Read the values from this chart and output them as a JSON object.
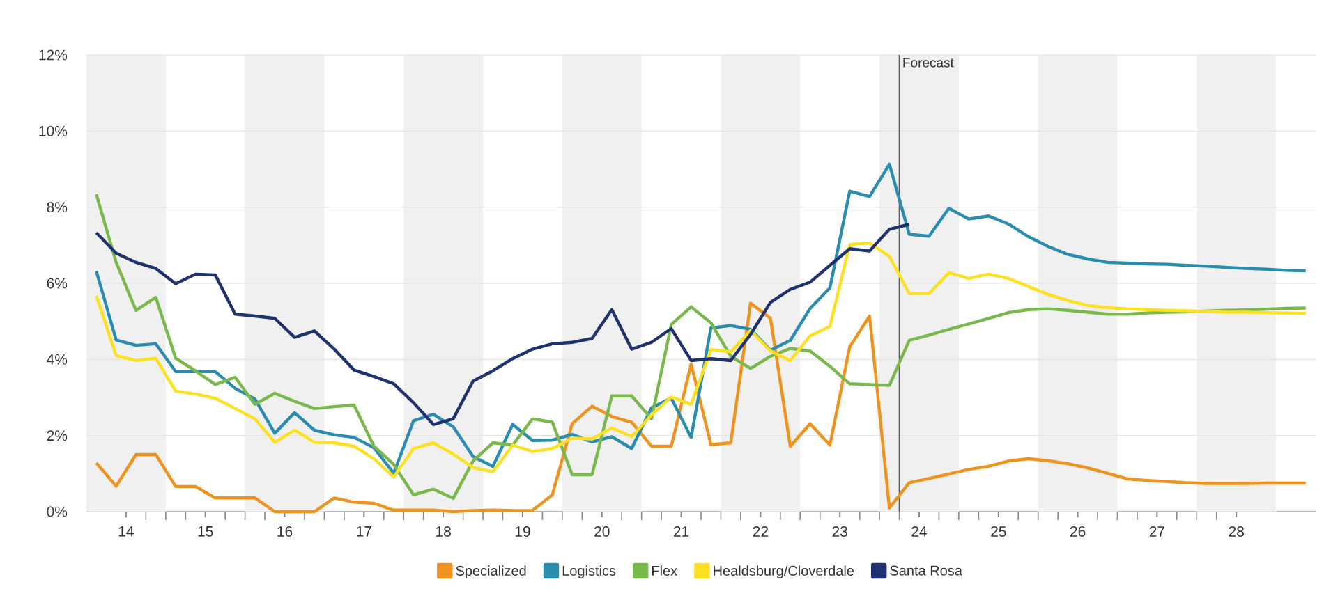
{
  "chart_data": {
    "type": "line",
    "x": [
      14.125,
      14.375,
      14.625,
      14.875,
      15.125,
      15.375,
      15.625,
      15.875,
      16.125,
      16.375,
      16.625,
      16.875,
      17.125,
      17.375,
      17.625,
      17.875,
      18.125,
      18.375,
      18.625,
      18.875,
      19.125,
      19.375,
      19.625,
      19.875,
      20.125,
      20.375,
      20.625,
      20.875,
      21.125,
      21.375,
      21.625,
      21.875,
      22.125,
      22.375,
      22.625,
      22.875,
      23.125,
      23.375,
      23.625,
      23.875,
      24.125,
      24.375,
      24.625,
      24.875,
      25.125,
      25.375,
      25.625,
      25.875,
      26.125,
      26.375,
      26.625,
      26.875,
      27.125,
      27.375,
      27.625,
      27.875,
      28.125,
      28.375,
      28.625,
      28.875,
      29.125,
      29.375
    ],
    "series": [
      {
        "name": "Specialized",
        "color": "#f0931e",
        "values": [
          1.28,
          0.67,
          1.5,
          1.5,
          0.66,
          0.66,
          0.36,
          0.36,
          0.36,
          0,
          0,
          0,
          0.36,
          0.25,
          0.22,
          0.04,
          0.04,
          0.04,
          0,
          0.03,
          0.04,
          0.03,
          0.03,
          0.44,
          2.31,
          2.77,
          2.5,
          2.35,
          1.72,
          1.72,
          3.88,
          1.76,
          1.81,
          5.48,
          5.08,
          1.72,
          2.31,
          1.75,
          4.33,
          5.14,
          0.1,
          0.76,
          0.87,
          0.99,
          1.11,
          1.19,
          1.33,
          1.39,
          1.34,
          1.26,
          1.15,
          1.01,
          0.86,
          0.82,
          0.79,
          0.76,
          0.74,
          0.74,
          0.74,
          0.75,
          0.75,
          0.75
        ]
      },
      {
        "name": "Logistics",
        "color": "#2a8cae",
        "values": [
          6.32,
          4.51,
          4.37,
          4.41,
          3.68,
          3.68,
          3.68,
          3.24,
          2.96,
          2.06,
          2.6,
          2.14,
          2.02,
          1.95,
          1.68,
          1.01,
          2.39,
          2.56,
          2.23,
          1.45,
          1.19,
          2.29,
          1.87,
          1.88,
          2.03,
          1.83,
          1.97,
          1.66,
          2.73,
          2.98,
          1.95,
          4.83,
          4.89,
          4.79,
          4.24,
          4.5,
          5.34,
          5.88,
          8.42,
          8.28,
          9.13,
          7.29,
          7.24,
          7.97,
          7.69,
          7.77,
          7.56,
          7.23,
          6.97,
          6.76,
          6.64,
          6.55,
          6.53,
          6.51,
          6.5,
          6.47,
          6.45,
          6.42,
          6.39,
          6.37,
          6.34,
          6.33
        ]
      },
      {
        "name": "Flex",
        "color": "#79b84a",
        "values": [
          8.34,
          6.55,
          5.29,
          5.63,
          4.03,
          3.7,
          3.34,
          3.53,
          2.82,
          3.11,
          2.9,
          2.71,
          2.76,
          2.8,
          1.72,
          1.24,
          0.44,
          0.59,
          0.35,
          1.33,
          1.81,
          1.75,
          2.44,
          2.35,
          0.97,
          0.97,
          3.04,
          3.04,
          2.44,
          4.92,
          5.38,
          4.96,
          4.08,
          3.76,
          4.08,
          4.29,
          4.22,
          3.82,
          3.36,
          3.34,
          3.32,
          4.5,
          4.64,
          4.79,
          4.93,
          5.08,
          5.23,
          5.31,
          5.33,
          5.29,
          5.24,
          5.19,
          5.19,
          5.22,
          5.24,
          5.25,
          5.27,
          5.29,
          5.3,
          5.32,
          5.34,
          5.35
        ]
      },
      {
        "name": "Healdsburg/Cloverdale",
        "color": "#fde022",
        "values": [
          5.67,
          4.1,
          3.97,
          4.03,
          3.17,
          3.09,
          2.98,
          2.71,
          2.44,
          1.82,
          2.14,
          1.82,
          1.81,
          1.72,
          1.39,
          0.91,
          1.66,
          1.81,
          1.51,
          1.16,
          1.05,
          1.75,
          1.58,
          1.66,
          1.93,
          1.91,
          2.2,
          1.97,
          2.54,
          3.01,
          2.82,
          4.26,
          4.2,
          4.76,
          4.22,
          3.97,
          4.62,
          4.87,
          7.02,
          7.06,
          6.71,
          5.73,
          5.73,
          6.28,
          6.13,
          6.24,
          6.13,
          5.92,
          5.71,
          5.55,
          5.42,
          5.36,
          5.33,
          5.31,
          5.29,
          5.28,
          5.26,
          5.24,
          5.24,
          5.23,
          5.22,
          5.21
        ]
      },
      {
        "name": "Santa Rosa",
        "color": "#1e3170",
        "values": [
          7.33,
          6.79,
          6.55,
          6.39,
          5.99,
          6.24,
          6.22,
          5.19,
          5.14,
          5.08,
          4.58,
          4.75,
          4.27,
          3.72,
          3.55,
          3.36,
          2.86,
          2.29,
          2.44,
          3.43,
          3.7,
          4.02,
          4.27,
          4.41,
          4.45,
          4.55,
          5.31,
          4.27,
          4.45,
          4.81,
          3.97,
          4.02,
          3.97,
          4.66,
          5.5,
          5.84,
          6.03,
          6.47,
          6.91,
          6.85,
          7.42,
          7.55,
          null,
          null,
          null,
          null,
          null,
          null,
          null,
          null,
          null,
          null,
          null,
          null,
          null,
          null,
          null,
          null,
          null,
          null,
          null,
          null
        ]
      }
    ],
    "xlim": [
      14,
      29.5
    ],
    "ylim": [
      0,
      12
    ],
    "xticks": [
      {
        "value": 14.5,
        "label": "14"
      },
      {
        "value": 15.5,
        "label": "15"
      },
      {
        "value": 16.5,
        "label": "16"
      },
      {
        "value": 17.5,
        "label": "17"
      },
      {
        "value": 18.5,
        "label": "18"
      },
      {
        "value": 19.5,
        "label": "19"
      },
      {
        "value": 20.5,
        "label": "20"
      },
      {
        "value": 21.5,
        "label": "21"
      },
      {
        "value": 22.5,
        "label": "22"
      },
      {
        "value": 23.5,
        "label": "23"
      },
      {
        "value": 24.5,
        "label": "24"
      },
      {
        "value": 25.5,
        "label": "25"
      },
      {
        "value": 26.5,
        "label": "26"
      },
      {
        "value": 27.5,
        "label": "27"
      },
      {
        "value": 28.5,
        "label": "28"
      }
    ],
    "yticks": [
      {
        "value": 0,
        "label": "0%"
      },
      {
        "value": 2,
        "label": "2%"
      },
      {
        "value": 4,
        "label": "4%"
      },
      {
        "value": 6,
        "label": "6%"
      },
      {
        "value": 8,
        "label": "8%"
      },
      {
        "value": 10,
        "label": "10%"
      },
      {
        "value": 12,
        "label": "12%"
      }
    ],
    "bands": [
      {
        "axis": "x",
        "from": 14,
        "to": 15,
        "color": "#f0f0f0"
      },
      {
        "axis": "x",
        "from": 16,
        "to": 17,
        "color": "#f0f0f0"
      },
      {
        "axis": "x",
        "from": 18,
        "to": 19,
        "color": "#f0f0f0"
      },
      {
        "axis": "x",
        "from": 20,
        "to": 21,
        "color": "#f0f0f0"
      },
      {
        "axis": "x",
        "from": 22,
        "to": 23,
        "color": "#f0f0f0"
      },
      {
        "axis": "x",
        "from": 24,
        "to": 25,
        "color": "#f0f0f0"
      },
      {
        "axis": "x",
        "from": 26,
        "to": 27,
        "color": "#f0f0f0"
      },
      {
        "axis": "x",
        "from": 28,
        "to": 29,
        "color": "#f0f0f0"
      }
    ],
    "ref_lines": [
      {
        "axis": "x",
        "value": 24.25,
        "label": "Forecast",
        "color": "#555555"
      }
    ],
    "grid": "y",
    "legend": "bottom",
    "marker": "none",
    "line_style": "solid"
  }
}
